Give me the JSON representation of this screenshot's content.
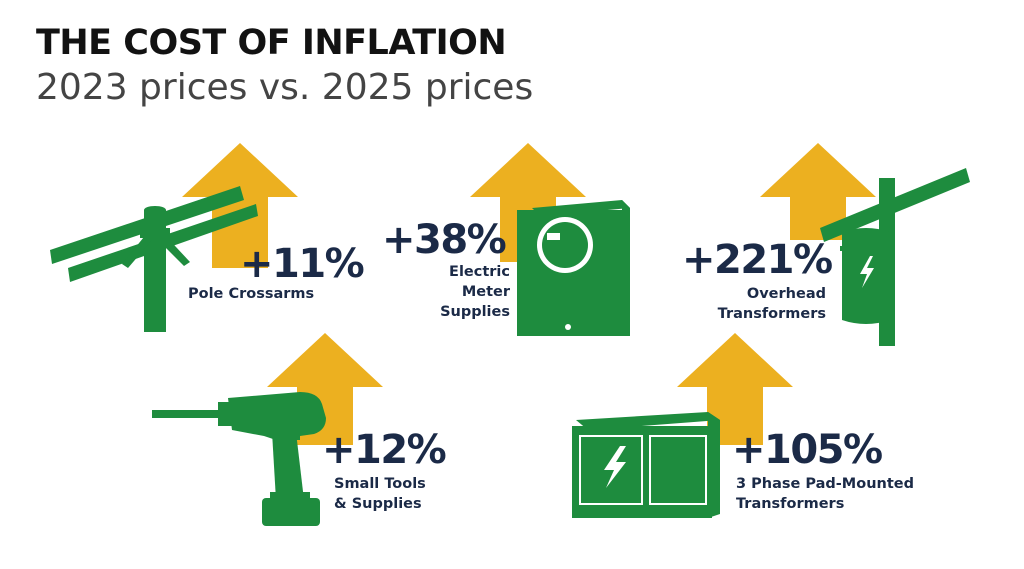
{
  "header": {
    "title": "THE COST OF INFLATION",
    "subtitle": "2023 prices vs. 2025 prices"
  },
  "colors": {
    "arrow": "#ecb020",
    "icon": "#1e8c3e",
    "text": "#1b2a47"
  },
  "items": [
    {
      "percent": "+11%",
      "label_lines": [
        "Pole Crossarms"
      ],
      "icon": "utility-pole-icon"
    },
    {
      "percent": "+38%",
      "label_lines": [
        "Electric",
        "Meter",
        "Supplies"
      ],
      "icon": "electric-meter-icon"
    },
    {
      "percent": "+221%",
      "label_lines": [
        "Overhead",
        "Transformers"
      ],
      "icon": "overhead-transformer-icon"
    },
    {
      "percent": "+12%",
      "label_lines": [
        "Small Tools",
        "& Supplies"
      ],
      "icon": "power-drill-icon"
    },
    {
      "percent": "+105%",
      "label_lines": [
        "3 Phase Pad-Mounted",
        "Transformers"
      ],
      "icon": "pad-mounted-transformer-icon"
    }
  ]
}
